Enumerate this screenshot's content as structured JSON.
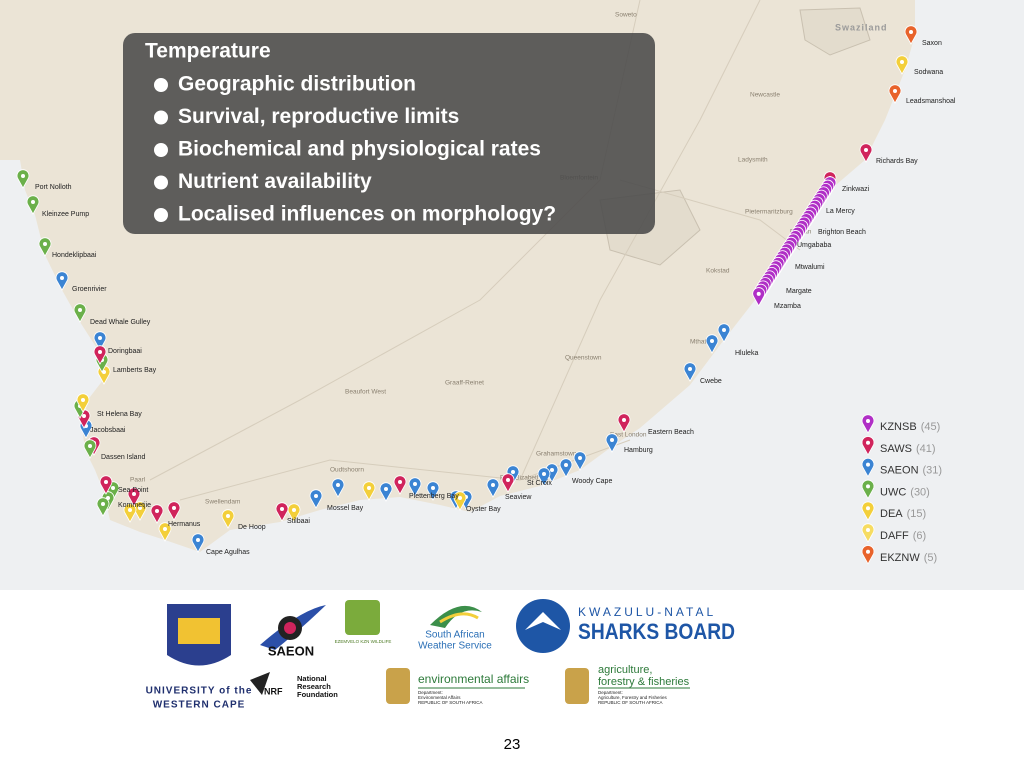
{
  "overlay": {
    "title": "Temperature",
    "bullets": [
      "Geographic distribution",
      "Survival, reproductive limits",
      "Biochemical and physiological rates",
      "Nutrient availability",
      "Localised influences on morphology?"
    ]
  },
  "legend": [
    {
      "name": "KZNSB",
      "count": "(45)",
      "color": "#b02fc6"
    },
    {
      "name": "SAWS",
      "count": "(41)",
      "color": "#d0245c"
    },
    {
      "name": "SAEON",
      "count": "(31)",
      "color": "#3b84d3"
    },
    {
      "name": "UWC",
      "count": "(30)",
      "color": "#6bb04a"
    },
    {
      "name": "DEA",
      "count": "(15)",
      "color": "#f3cf3a"
    },
    {
      "name": "DAFF",
      "count": "(6)",
      "color": "#f6dc62"
    },
    {
      "name": "EKZNW",
      "count": "(5)",
      "color": "#e8632b"
    }
  ],
  "stations": [
    "Saxon",
    "Sodwana",
    "Leadsmanshoal",
    "Richards Bay",
    "Zinkwazi",
    "La Mercy",
    "Brighton Beach",
    "Umgababa",
    "Mtwalumi",
    "Margate",
    "Mzamba",
    "Hluleka",
    "Cwebe",
    "Eastern Beach",
    "Hamburg",
    "Woody Cape",
    "St Croix",
    "Seaview",
    "Oyster Bay",
    "Plettenberg Bay",
    "Mossel Bay",
    "Stilbaai",
    "De Hoop",
    "Cape Agulhas",
    "Hermanus",
    "Kommetjie",
    "Sea Point",
    "Dassen Island",
    "Jacobsbaai",
    "St Helena Bay",
    "Lamberts Bay",
    "Doringbaai",
    "Dead Whale Gulley",
    "Groenrivier",
    "Hondeklipbaai",
    "Kleinzee Pump",
    "Port Nolloth"
  ],
  "map_labels": [
    "Swaziland",
    "Bloemfontein",
    "Newcastle",
    "Ladysmith",
    "Pietermaritzburg",
    "Queenstown",
    "Port Elizabeth",
    "Grahamstown",
    "East London",
    "Oudtshoorn",
    "Paarl",
    "Swellendam",
    "Beaufort West",
    "Graaff-Reinet",
    "Kokstad",
    "Mthatha",
    "Soweto",
    "Durban"
  ],
  "logos": {
    "uwc": [
      "UNIVERSITY of the",
      "WESTERN CAPE"
    ],
    "saeon": "SAEON",
    "nrf_mark": "NRF",
    "nrf": [
      "National",
      "Research",
      "Foundation"
    ],
    "ezemvelo": "EZEMVELO KZN WILDLIFE",
    "saws": [
      "South African",
      "Weather Service"
    ],
    "sharks": [
      "KWAZULU-NATAL",
      "SHARKS BOARD"
    ],
    "env": {
      "title": "environmental affairs",
      "dept": [
        "Department:",
        "Environmental Affairs",
        "REPUBLIC OF SOUTH AFRICA"
      ]
    },
    "agri": {
      "title": [
        "agriculture,",
        "forestry & fisheries"
      ],
      "dept": [
        "Department:",
        "Agriculture, Forestry and Fisheries",
        "REPUBLIC OF SOUTH AFRICA"
      ]
    }
  },
  "page_number": "23"
}
